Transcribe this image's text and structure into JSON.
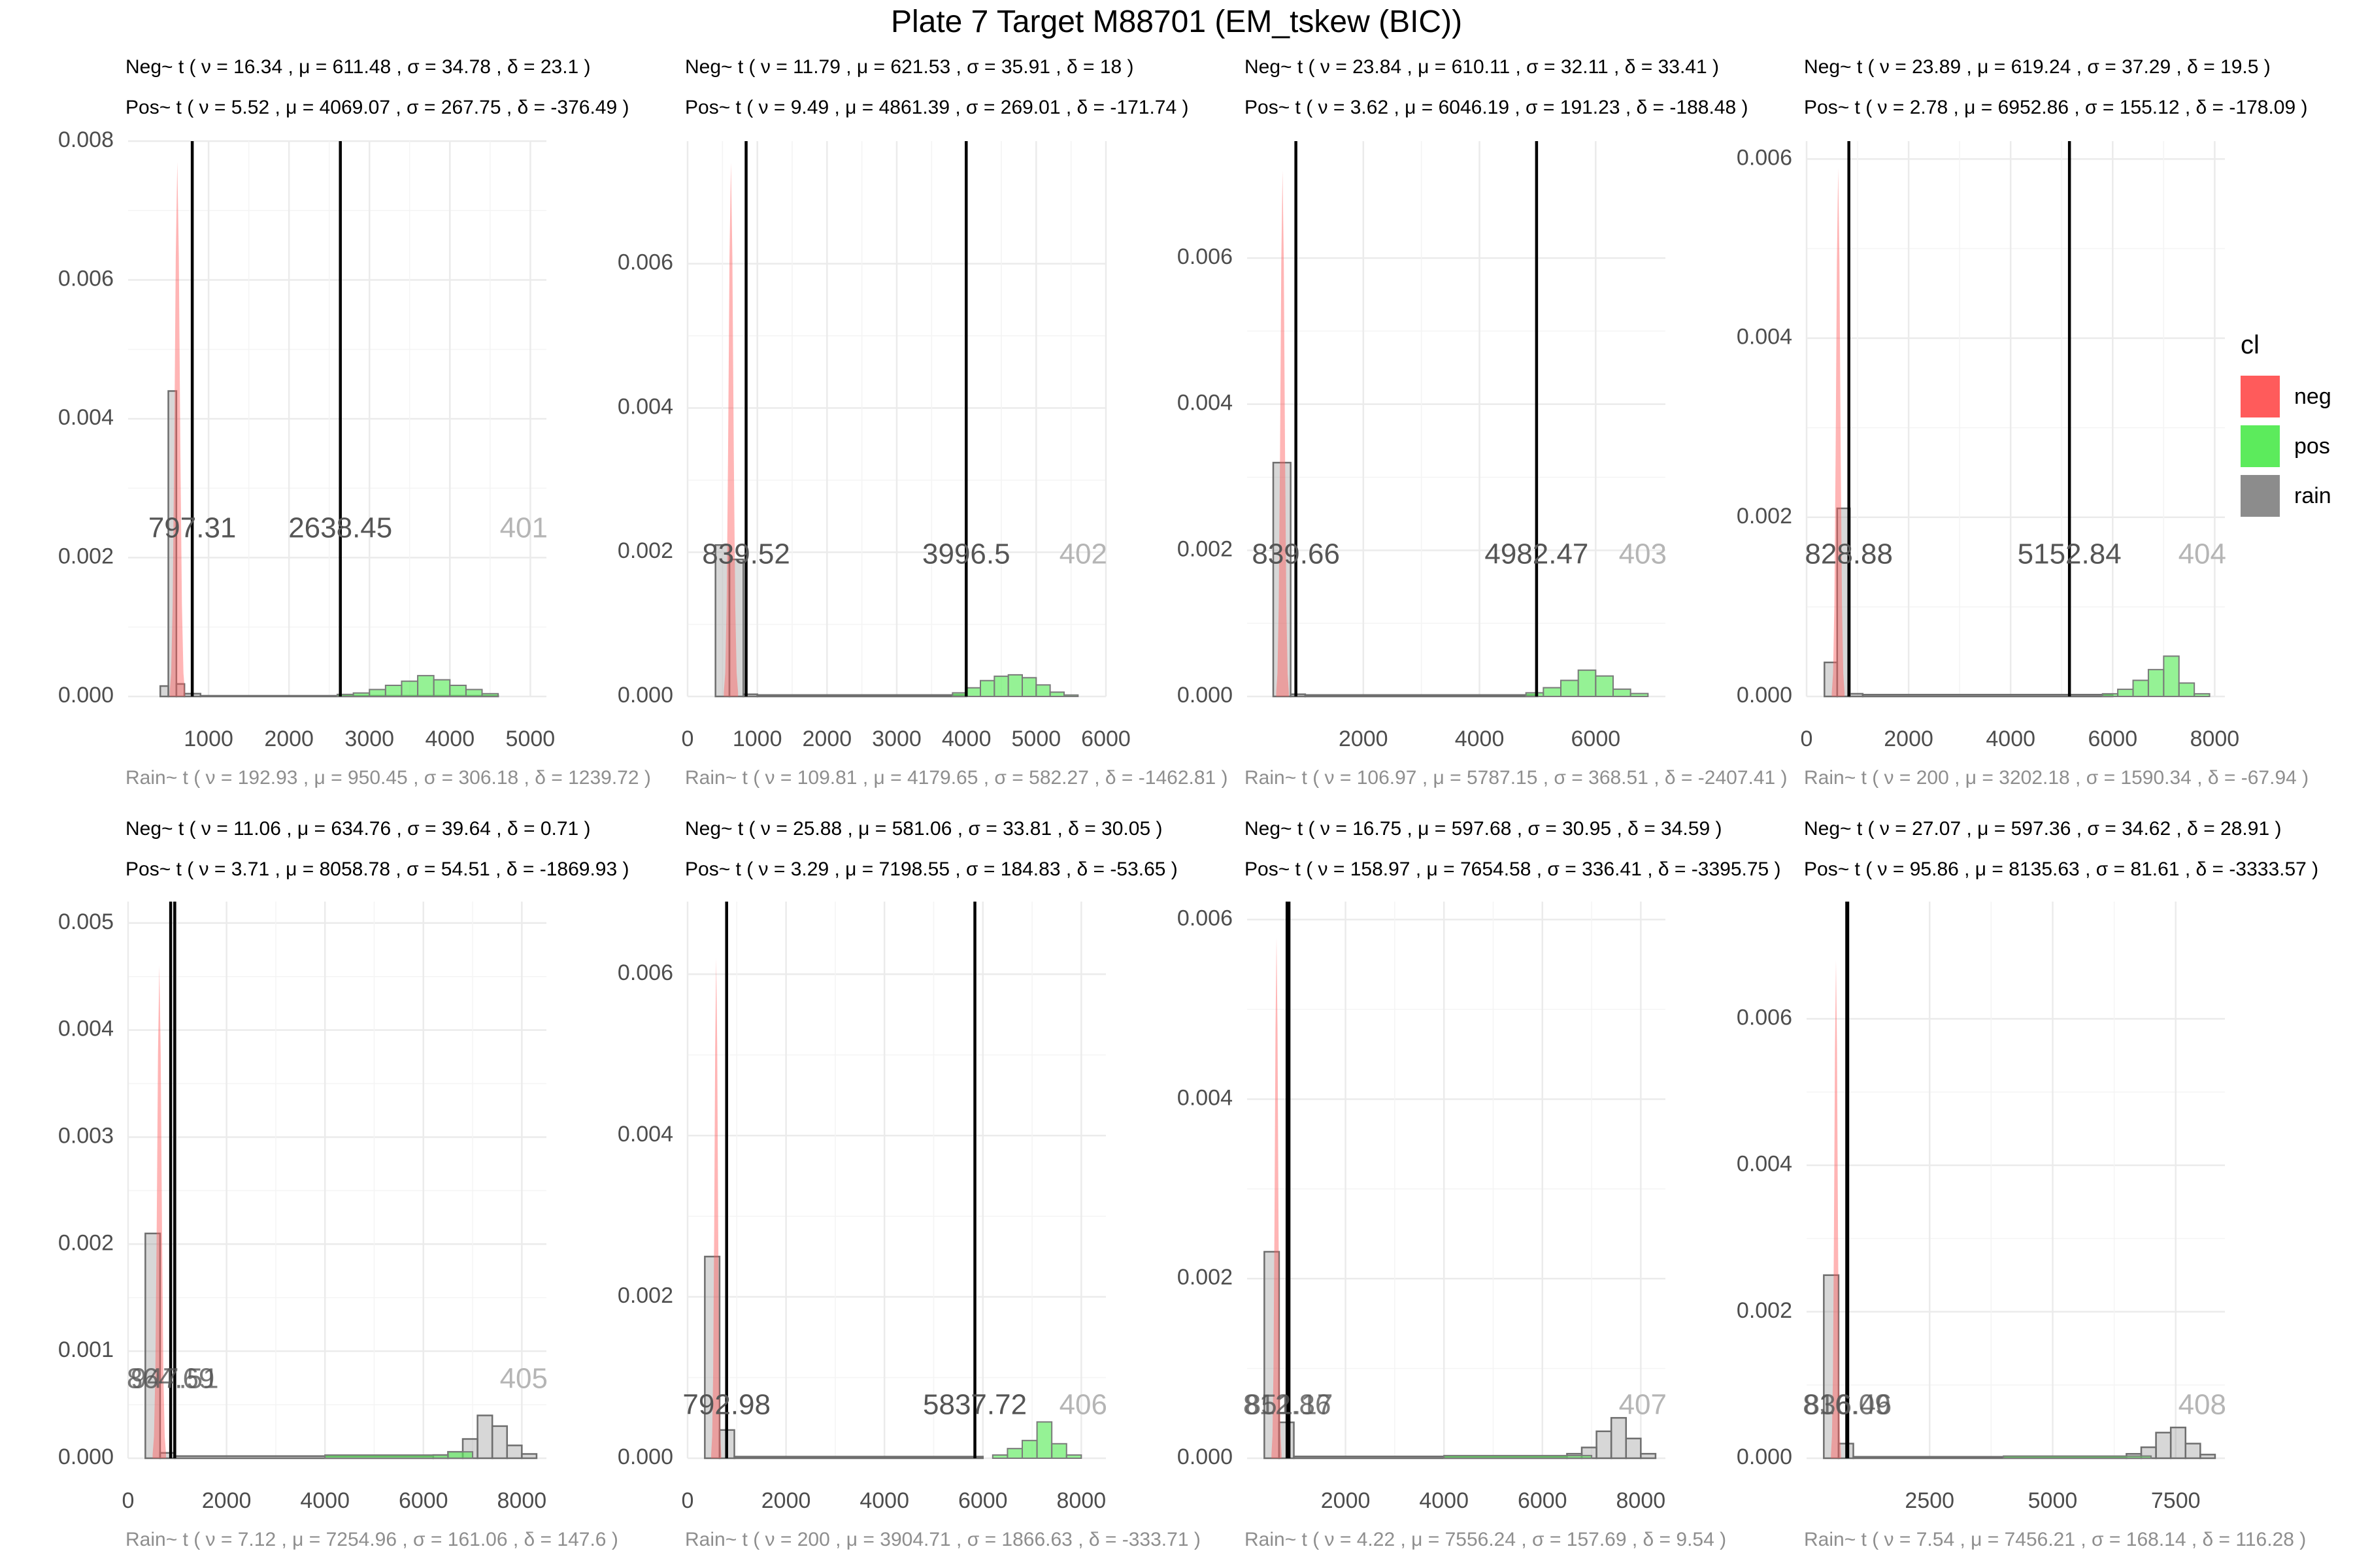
{
  "title": "Plate 7 Target M88701 (EM_tskew (BIC))",
  "legend": {
    "title": "cl",
    "items": [
      {
        "label": "neg",
        "color": "#FF5B5B"
      },
      {
        "label": "pos",
        "color": "#5CEB5C"
      },
      {
        "label": "rain",
        "color": "#8C8C8C"
      }
    ]
  },
  "chart_data": [
    {
      "type": "histogram",
      "well": "401",
      "neg_label": "Neg~ t ( ν = 16.34 , μ = 611.48 , σ = 34.78 , δ = 23.1 )",
      "pos_label": "Pos~ t ( ν = 5.52 , μ = 4069.07 , σ = 267.75 , δ = -376.49 )",
      "rain_label": "Rain~ t ( ν = 192.93 , μ = 950.45 , σ = 306.18 , δ = 1239.72 )",
      "xlim": [
        0,
        5200
      ],
      "xticks": [
        1000,
        2000,
        3000,
        4000,
        5000
      ],
      "xtick_labels": [
        "1000",
        "2000",
        "3000",
        "4000",
        "5000"
      ],
      "ylim": [
        0,
        0.008
      ],
      "yticks": [
        0,
        0.002,
        0.004,
        0.006,
        0.008
      ],
      "ytick_labels": [
        "0.000",
        "0.002",
        "0.004",
        "0.006",
        "0.008"
      ],
      "thresholds": [
        797.31,
        2638.45
      ],
      "threshold_labels": [
        "797.31",
        "2638.45"
      ],
      "neg_curve": {
        "mu": 611.48,
        "peak": 0.0077,
        "halfwidth": 42
      },
      "rain_bins": [
        [
          400,
          500,
          0.00015
        ],
        [
          500,
          600,
          0.0044
        ],
        [
          600,
          700,
          0.00018
        ],
        [
          700,
          900,
          4e-05
        ],
        [
          900,
          4600,
          1e-05
        ]
      ],
      "pos_bins": [
        [
          2600,
          2800,
          3e-05
        ],
        [
          2800,
          3000,
          5e-05
        ],
        [
          3000,
          3200,
          0.0001
        ],
        [
          3200,
          3400,
          0.00016
        ],
        [
          3400,
          3600,
          0.00022
        ],
        [
          3600,
          3800,
          0.0003
        ],
        [
          3800,
          4000,
          0.00024
        ],
        [
          4000,
          4200,
          0.00016
        ],
        [
          4200,
          4400,
          0.0001
        ],
        [
          4400,
          4600,
          4e-05
        ]
      ]
    },
    {
      "type": "histogram",
      "well": "402",
      "neg_label": "Neg~ t ( ν = 11.79 , μ = 621.53 , σ = 35.91 , δ = 18 )",
      "pos_label": "Pos~ t ( ν = 9.49 , μ = 4861.39 , σ = 269.01 , δ = -171.74 )",
      "rain_label": "Rain~ t ( ν = 109.81 , μ = 4179.65 , σ = 582.27 , δ = -1462.81 )",
      "xlim": [
        0,
        6000
      ],
      "xticks": [
        0,
        1000,
        2000,
        3000,
        4000,
        5000,
        6000
      ],
      "xtick_labels": [
        "0",
        "1000",
        "2000",
        "3000",
        "4000",
        "5000",
        "6000"
      ],
      "ylim": [
        0,
        0.0077
      ],
      "yticks": [
        0,
        0.002,
        0.004,
        0.006
      ],
      "ytick_labels": [
        "0.000",
        "0.002",
        "0.004",
        "0.006"
      ],
      "thresholds": [
        839.52,
        3996.5
      ],
      "threshold_labels": [
        "839.52",
        "3996.5"
      ],
      "neg_curve": {
        "mu": 621.53,
        "peak": 0.0074,
        "halfwidth": 45
      },
      "rain_bins": [
        [
          400,
          600,
          0.0021
        ],
        [
          600,
          800,
          0.0019
        ],
        [
          800,
          1000,
          3e-05
        ],
        [
          1000,
          4000,
          2e-05
        ]
      ],
      "pos_bins": [
        [
          3800,
          4000,
          5e-05
        ],
        [
          4000,
          4200,
          0.00012
        ],
        [
          4200,
          4400,
          0.00022
        ],
        [
          4400,
          4600,
          0.00028
        ],
        [
          4600,
          4800,
          0.0003
        ],
        [
          4800,
          5000,
          0.00026
        ],
        [
          5000,
          5200,
          0.00016
        ],
        [
          5200,
          5400,
          6e-05
        ],
        [
          5400,
          5600,
          2e-05
        ]
      ]
    },
    {
      "type": "histogram",
      "well": "403",
      "neg_label": "Neg~ t ( ν = 23.84 , μ = 610.11 , σ = 32.11 , δ = 33.41 )",
      "pos_label": "Pos~ t ( ν = 3.62 , μ = 6046.19 , σ = 191.23 , δ = -188.48 )",
      "rain_label": "Rain~ t ( ν = 106.97 , μ = 5787.15 , σ = 368.51 , δ = -2407.41 )",
      "xlim": [
        0,
        7200
      ],
      "xticks": [
        2000,
        4000,
        6000
      ],
      "xtick_labels": [
        "2000",
        "4000",
        "6000"
      ],
      "ylim": [
        0,
        0.0076
      ],
      "yticks": [
        0,
        0.002,
        0.004,
        0.006
      ],
      "ytick_labels": [
        "0.000",
        "0.002",
        "0.004",
        "0.006"
      ],
      "thresholds": [
        839.66,
        4982.47
      ],
      "threshold_labels": [
        "839.66",
        "4982.47"
      ],
      "neg_curve": {
        "mu": 610.11,
        "peak": 0.0072,
        "halfwidth": 48
      },
      "rain_bins": [
        [
          450,
          750,
          0.0032
        ],
        [
          750,
          1000,
          3e-05
        ],
        [
          1000,
          5000,
          2e-05
        ]
      ],
      "pos_bins": [
        [
          4800,
          5100,
          5e-05
        ],
        [
          5100,
          5400,
          0.00012
        ],
        [
          5400,
          5700,
          0.00022
        ],
        [
          5700,
          6000,
          0.00036
        ],
        [
          6000,
          6300,
          0.00028
        ],
        [
          6300,
          6600,
          0.0001
        ],
        [
          6600,
          6900,
          4e-05
        ]
      ]
    },
    {
      "type": "histogram",
      "well": "404",
      "neg_label": "Neg~ t ( ν = 23.89 , μ = 619.24 , σ = 37.29 , δ = 19.5 )",
      "pos_label": "Pos~ t ( ν = 2.78 , μ = 6952.86 , σ = 155.12 , δ = -178.09 )",
      "rain_label": "Rain~ t ( ν = 200 , μ = 3202.18 , σ = 1590.34 , δ = -67.94 )",
      "xlim": [
        0,
        8200
      ],
      "xticks": [
        0,
        2000,
        4000,
        6000,
        8000
      ],
      "xtick_labels": [
        "0",
        "2000",
        "4000",
        "6000",
        "8000"
      ],
      "ylim": [
        0,
        0.0062
      ],
      "yticks": [
        0,
        0.002,
        0.004,
        0.006
      ],
      "ytick_labels": [
        "0.000",
        "0.002",
        "0.004",
        "0.006"
      ],
      "thresholds": [
        828.88,
        5152.84
      ],
      "threshold_labels": [
        "828.88",
        "5152.84"
      ],
      "neg_curve": {
        "mu": 619.24,
        "peak": 0.0059,
        "halfwidth": 55
      },
      "rain_bins": [
        [
          350,
          600,
          0.00038
        ],
        [
          600,
          850,
          0.0021
        ],
        [
          850,
          1100,
          3e-05
        ],
        [
          1100,
          6000,
          2e-05
        ]
      ],
      "pos_bins": [
        [
          5800,
          6100,
          3e-05
        ],
        [
          6100,
          6400,
          8e-05
        ],
        [
          6400,
          6700,
          0.00018
        ],
        [
          6700,
          7000,
          0.0003
        ],
        [
          7000,
          7300,
          0.00045
        ],
        [
          7300,
          7600,
          0.00015
        ],
        [
          7600,
          7900,
          3e-05
        ]
      ]
    },
    {
      "type": "histogram",
      "well": "405",
      "neg_label": "Neg~ t ( ν = 11.06 , μ = 634.76 , σ = 39.64 , δ = 0.71 )",
      "pos_label": "Pos~ t ( ν = 3.71 , μ = 8058.78 , σ = 54.51 , δ = -1869.93 )",
      "rain_label": "Rain~ t ( ν = 7.12 , μ = 7254.96 , σ = 161.06 , δ = 147.6 )",
      "xlim": [
        0,
        8500
      ],
      "xticks": [
        0,
        2000,
        4000,
        6000,
        8000
      ],
      "xtick_labels": [
        "0",
        "2000",
        "4000",
        "6000",
        "8000"
      ],
      "ylim": [
        0,
        0.0052
      ],
      "yticks": [
        0,
        0.001,
        0.002,
        0.003,
        0.004,
        0.005
      ],
      "ytick_labels": [
        "0.000",
        "0.001",
        "0.002",
        "0.003",
        "0.004",
        "0.005"
      ],
      "thresholds": [
        864.69,
        947.51
      ],
      "threshold_labels": [
        "864.69",
        "947.51"
      ],
      "neg_curve": {
        "mu": 634.76,
        "peak": 0.0046,
        "halfwidth": 60
      },
      "rain_bins": [
        [
          350,
          650,
          0.0021
        ],
        [
          650,
          950,
          5e-05
        ],
        [
          950,
          6200,
          2e-05
        ],
        [
          6200,
          6500,
          3e-05
        ],
        [
          6500,
          6800,
          6e-05
        ],
        [
          6800,
          7100,
          0.00018
        ],
        [
          7100,
          7400,
          0.0004
        ],
        [
          7400,
          7700,
          0.0003
        ],
        [
          7700,
          8000,
          0.00012
        ],
        [
          8000,
          8300,
          4e-05
        ]
      ],
      "pos_bins": [
        [
          4000,
          6500,
          3e-05
        ],
        [
          6500,
          7000,
          6e-05
        ]
      ]
    },
    {
      "type": "histogram",
      "well": "406",
      "neg_label": "Neg~ t ( ν = 25.88 , μ = 581.06 , σ = 33.81 , δ = 30.05 )",
      "pos_label": "Pos~ t ( ν = 3.29 , μ = 7198.55 , σ = 184.83 , δ = -53.65 )",
      "rain_label": "Rain~ t ( ν = 200 , μ = 3904.71 , σ = 1866.63 , δ = -333.71 )",
      "xlim": [
        0,
        8500
      ],
      "xticks": [
        0,
        2000,
        4000,
        6000,
        8000
      ],
      "xtick_labels": [
        "0",
        "2000",
        "4000",
        "6000",
        "8000"
      ],
      "ylim": [
        0,
        0.0069
      ],
      "yticks": [
        0,
        0.002,
        0.004,
        0.006
      ],
      "ytick_labels": [
        "0.000",
        "0.002",
        "0.004",
        "0.006"
      ],
      "thresholds": [
        792.98,
        5837.72
      ],
      "threshold_labels": [
        "792.98",
        "5837.72"
      ],
      "neg_curve": {
        "mu": 581.06,
        "peak": 0.0062,
        "halfwidth": 45
      },
      "rain_bins": [
        [
          350,
          650,
          0.0025
        ],
        [
          650,
          950,
          0.00035
        ],
        [
          950,
          6000,
          2e-05
        ]
      ],
      "pos_bins": [
        [
          6200,
          6500,
          4e-05
        ],
        [
          6500,
          6800,
          0.00012
        ],
        [
          6800,
          7100,
          0.00022
        ],
        [
          7100,
          7400,
          0.00045
        ],
        [
          7400,
          7700,
          0.00018
        ],
        [
          7700,
          8000,
          4e-05
        ]
      ]
    },
    {
      "type": "histogram",
      "well": "407",
      "neg_label": "Neg~ t ( ν = 16.75 , μ = 597.68 , σ = 30.95 , δ = 34.59 )",
      "pos_label": "Pos~ t ( ν = 158.97 , μ = 7654.58 , σ = 336.41 , δ = -3395.75 )",
      "rain_label": "Rain~ t ( ν = 4.22 , μ = 7556.24 , σ = 157.69 , δ = 9.54 )",
      "xlim": [
        0,
        8500
      ],
      "xticks": [
        2000,
        4000,
        6000,
        8000
      ],
      "xtick_labels": [
        "2000",
        "4000",
        "6000",
        "8000"
      ],
      "ylim": [
        0,
        0.0062
      ],
      "yticks": [
        0,
        0.002,
        0.004,
        0.006
      ],
      "ytick_labels": [
        "0.000",
        "0.002",
        "0.004",
        "0.006"
      ],
      "thresholds": [
        812.86,
        851.17
      ],
      "threshold_labels": [
        "812.86",
        "851.17"
      ],
      "neg_curve": {
        "mu": 597.68,
        "peak": 0.0058,
        "halfwidth": 45
      },
      "rain_bins": [
        [
          350,
          650,
          0.0023
        ],
        [
          650,
          950,
          0.0004
        ],
        [
          950,
          6500,
          2e-05
        ],
        [
          6500,
          6800,
          5e-05
        ],
        [
          6800,
          7100,
          0.00012
        ],
        [
          7100,
          7400,
          0.0003
        ],
        [
          7400,
          7700,
          0.00045
        ],
        [
          7700,
          8000,
          0.00022
        ],
        [
          8000,
          8300,
          5e-05
        ]
      ],
      "pos_bins": [
        [
          4000,
          7000,
          3e-05
        ]
      ]
    },
    {
      "type": "histogram",
      "well": "408",
      "neg_label": "Neg~ t ( ν = 27.07 , μ = 597.36 , σ = 34.62 , δ = 28.91 )",
      "pos_label": "Pos~ t ( ν = 95.86 , μ = 8135.63 , σ = 81.61 , δ = -3333.57 )",
      "rain_label": "Rain~ t ( ν = 7.54 , μ = 7456.21 , σ = 168.14 , δ = 116.28 )",
      "xlim": [
        0,
        8500
      ],
      "xticks": [
        2500,
        5000,
        7500
      ],
      "xtick_labels": [
        "2500",
        "5000",
        "7500"
      ],
      "ylim": [
        0,
        0.0076
      ],
      "yticks": [
        0,
        0.002,
        0.004,
        0.006
      ],
      "ytick_labels": [
        "0.000",
        "0.002",
        "0.004",
        "0.006"
      ],
      "thresholds": [
        816.09,
        836.46
      ],
      "threshold_labels": [
        "816.09",
        "836.46"
      ],
      "neg_curve": {
        "mu": 597.36,
        "peak": 0.0068,
        "halfwidth": 45
      },
      "rain_bins": [
        [
          350,
          650,
          0.0025
        ],
        [
          650,
          950,
          0.0002
        ],
        [
          950,
          6500,
          2e-05
        ],
        [
          6500,
          6800,
          6e-05
        ],
        [
          6800,
          7100,
          0.00015
        ],
        [
          7100,
          7400,
          0.00035
        ],
        [
          7400,
          7700,
          0.00042
        ],
        [
          7700,
          8000,
          0.0002
        ],
        [
          8000,
          8300,
          5e-05
        ]
      ],
      "pos_bins": [
        [
          4000,
          7000,
          3e-05
        ]
      ]
    }
  ]
}
